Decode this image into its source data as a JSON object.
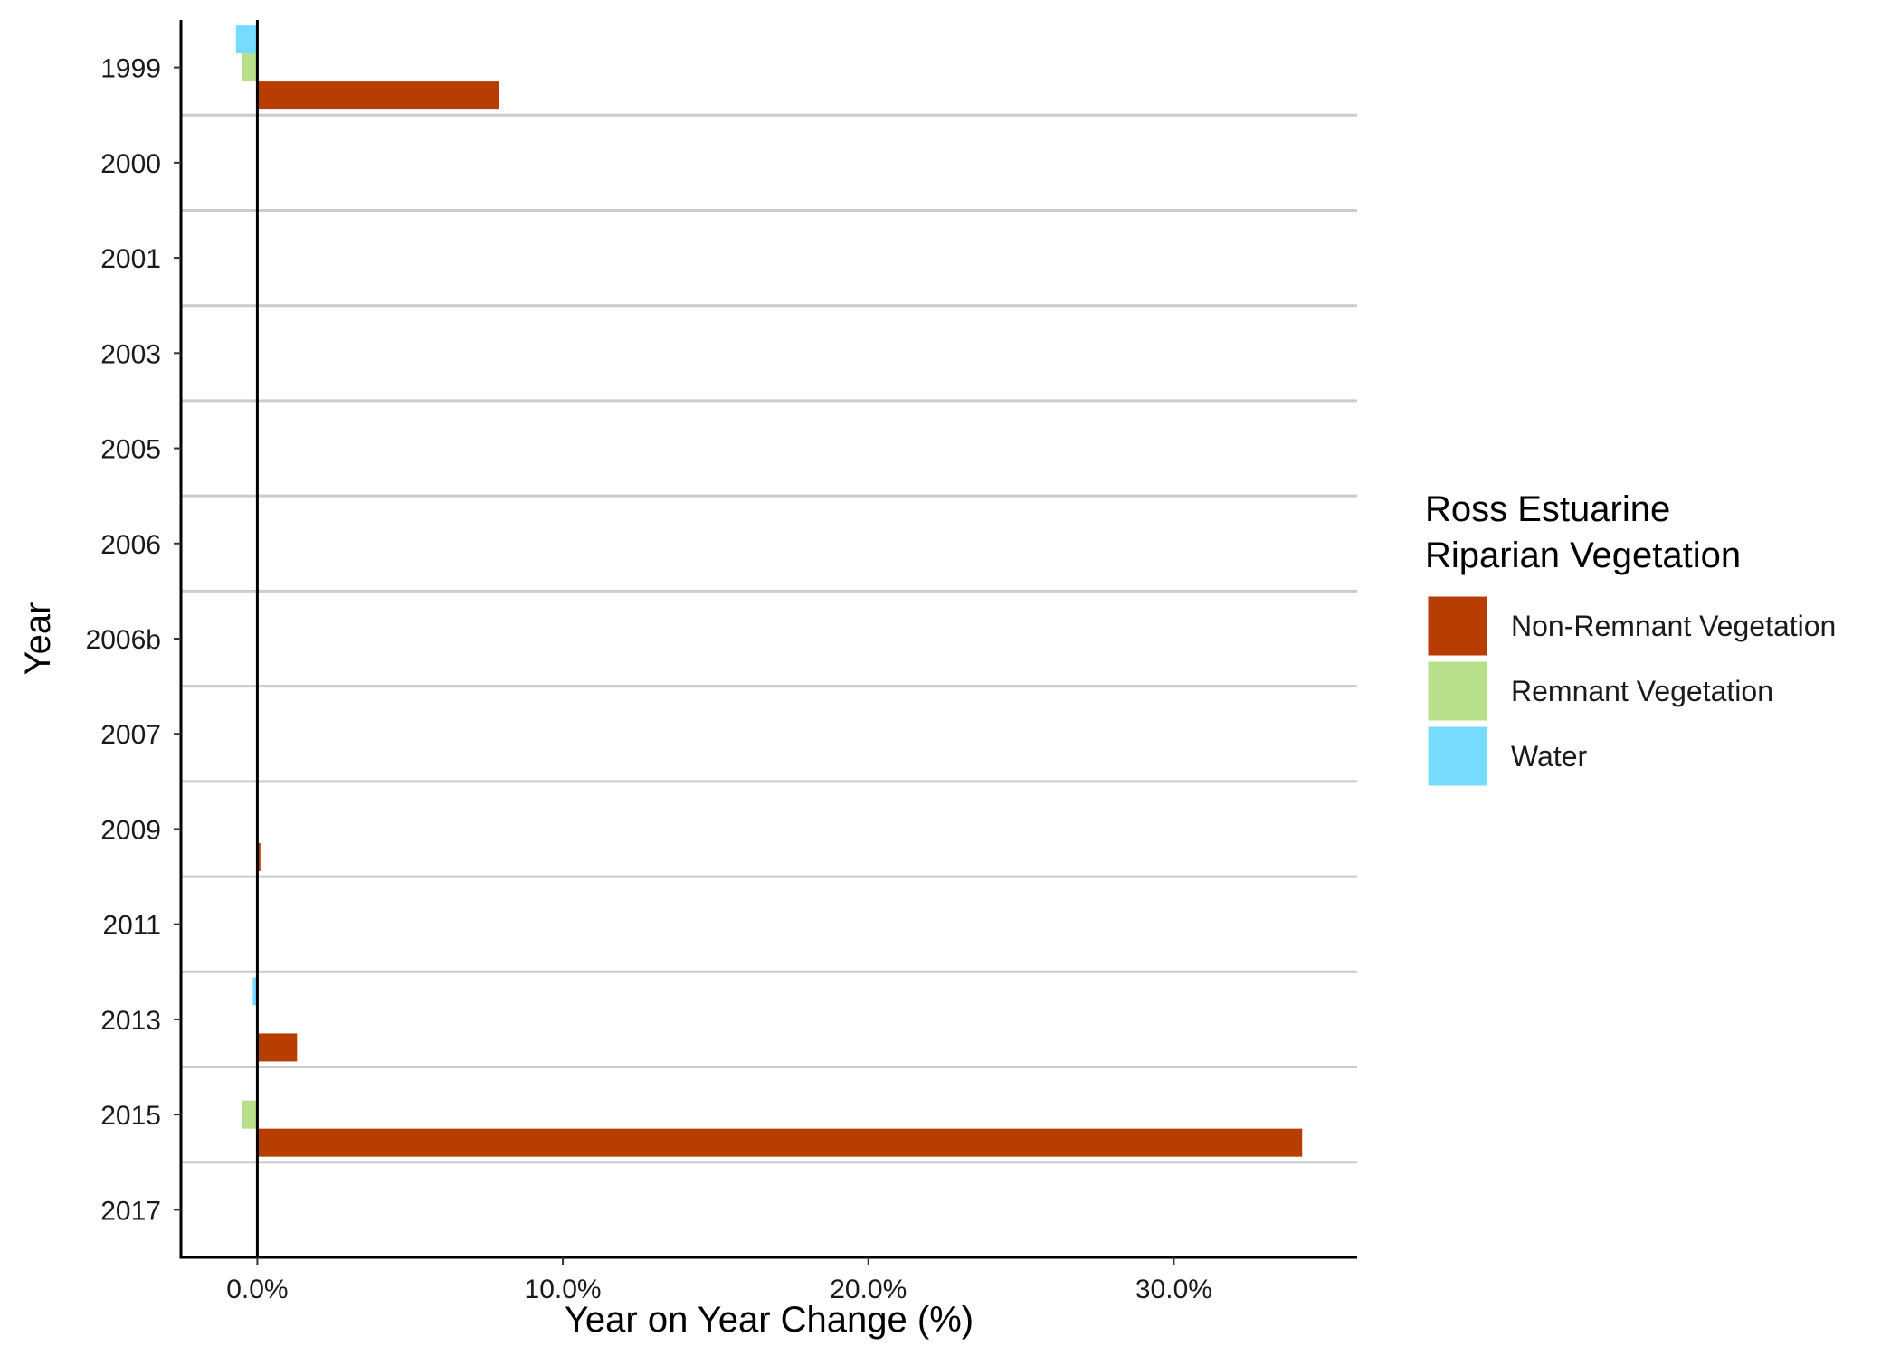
{
  "chart_data": {
    "type": "bar",
    "orientation": "horizontal",
    "categories": [
      "1999",
      "2000",
      "2001",
      "2003",
      "2005",
      "2006",
      "2006b",
      "2007",
      "2009",
      "2011",
      "2013",
      "2015",
      "2017"
    ],
    "series": [
      {
        "name": "Non-Remnant Vegetation",
        "color": "#B73D00",
        "values": [
          7.9,
          0,
          0,
          0,
          0,
          0,
          0,
          0,
          0.1,
          0,
          1.3,
          34.2,
          0
        ]
      },
      {
        "name": "Remnant Vegetation",
        "color": "#B8DF8A",
        "values": [
          -0.5,
          0,
          0,
          0,
          0,
          0,
          0,
          0,
          0,
          0,
          0,
          -0.5,
          0
        ]
      },
      {
        "name": "Water",
        "color": "#76DCFF",
        "values": [
          -0.7,
          0,
          0,
          0,
          0,
          0,
          0,
          0,
          0,
          0,
          -0.15,
          0,
          0
        ]
      }
    ],
    "xlabel": "Year on Year Change (%)",
    "ylabel": "Year",
    "xlim": [
      -2.5,
      36
    ],
    "x_ticks": [
      0,
      10,
      20,
      30
    ],
    "x_tick_labels": [
      "0.0%",
      "10.0%",
      "20.0%",
      "30.0%"
    ],
    "legend": {
      "title_lines": [
        "Ross Estuarine",
        "Riparian Vegetation"
      ],
      "placement": "right",
      "entries": [
        "Non-Remnant Vegetation",
        "Remnant Vegetation",
        "Water"
      ]
    },
    "horizontal_separators": true,
    "zero_line": true
  }
}
